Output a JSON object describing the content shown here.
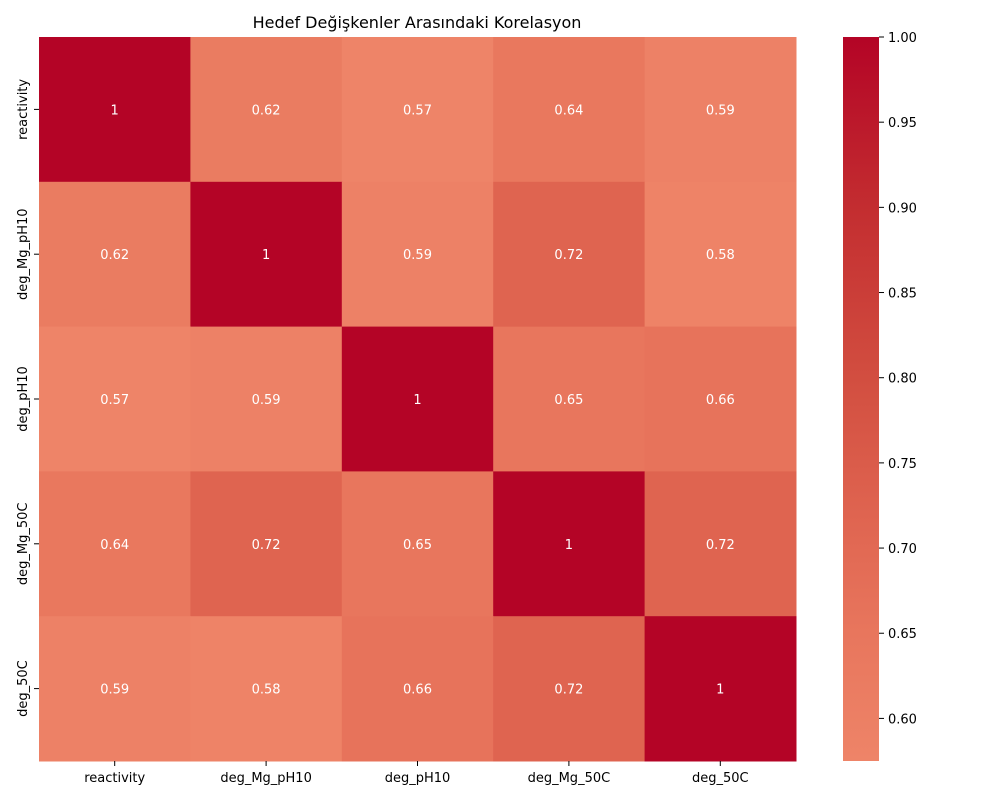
{
  "chart_data": {
    "type": "heatmap",
    "title": "Hedef Değişkenler Arasındaki Korelasyon",
    "x_categories": [
      "reactivity",
      "deg_Mg_pH10",
      "deg_pH10",
      "deg_Mg_50C",
      "deg_50C"
    ],
    "y_categories": [
      "reactivity",
      "deg_Mg_pH10",
      "deg_pH10",
      "deg_Mg_50C",
      "deg_50C"
    ],
    "values": [
      [
        1.0,
        0.62,
        0.57,
        0.64,
        0.59
      ],
      [
        0.62,
        1.0,
        0.59,
        0.72,
        0.58
      ],
      [
        0.57,
        0.59,
        1.0,
        0.65,
        0.66
      ],
      [
        0.64,
        0.72,
        0.65,
        1.0,
        0.72
      ],
      [
        0.59,
        0.58,
        0.66,
        0.72,
        1.0
      ]
    ],
    "annotations": [
      [
        "1",
        "0.62",
        "0.57",
        "0.64",
        "0.59"
      ],
      [
        "0.62",
        "1",
        "0.59",
        "0.72",
        "0.58"
      ],
      [
        "0.57",
        "0.59",
        "1",
        "0.65",
        "0.66"
      ],
      [
        "0.64",
        "0.72",
        "0.65",
        "1",
        "0.72"
      ],
      [
        "0.59",
        "0.58",
        "0.66",
        "0.72",
        "1"
      ]
    ],
    "colorbar": {
      "min": 0.575,
      "max": 1.0,
      "ticks": [
        "0.60",
        "0.65",
        "0.70",
        "0.75",
        "0.80",
        "0.85",
        "0.90",
        "0.95",
        "1.00"
      ]
    },
    "colors": {
      "low": "#ee8468",
      "mid": "#e06650",
      "high": "#b40426"
    }
  }
}
